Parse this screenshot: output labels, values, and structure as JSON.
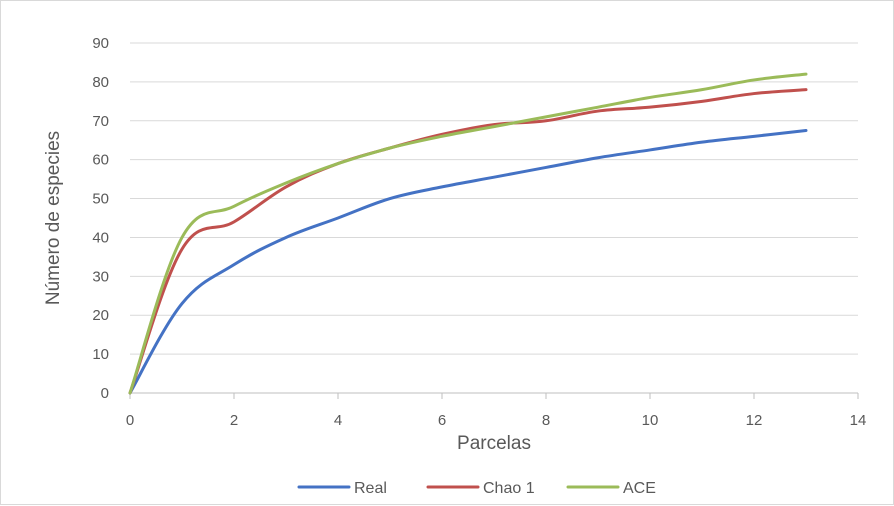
{
  "chart_data": {
    "type": "line",
    "title": "",
    "xlabel": "Parcelas",
    "ylabel": "Número de especies",
    "xlim": [
      0,
      14
    ],
    "ylim": [
      0,
      90
    ],
    "x_ticks": [
      0,
      2,
      4,
      6,
      8,
      10,
      12,
      14
    ],
    "y_ticks": [
      0,
      10,
      20,
      30,
      40,
      50,
      60,
      70,
      80,
      90
    ],
    "grid": "horizontal",
    "legend_position": "bottom",
    "x": [
      0,
      1,
      2,
      3,
      4,
      5,
      6,
      7,
      8,
      9,
      10,
      11,
      12,
      13
    ],
    "series": [
      {
        "name": "Real",
        "color": "#4472c4",
        "values": [
          0,
          23,
          33,
          40,
          45,
          50,
          53,
          55.5,
          58,
          60.5,
          62.5,
          64.5,
          66,
          67.5
        ]
      },
      {
        "name": "Chao 1",
        "color": "#c0504d",
        "values": [
          0,
          37,
          44,
          53,
          59,
          63,
          66.5,
          69,
          70,
          72.5,
          73.5,
          75,
          77,
          78
        ]
      },
      {
        "name": "ACE",
        "color": "#9bbb59",
        "values": [
          0,
          40,
          48,
          54,
          59,
          63,
          66,
          68.5,
          71,
          73.5,
          76,
          78,
          80.5,
          82
        ]
      }
    ]
  }
}
